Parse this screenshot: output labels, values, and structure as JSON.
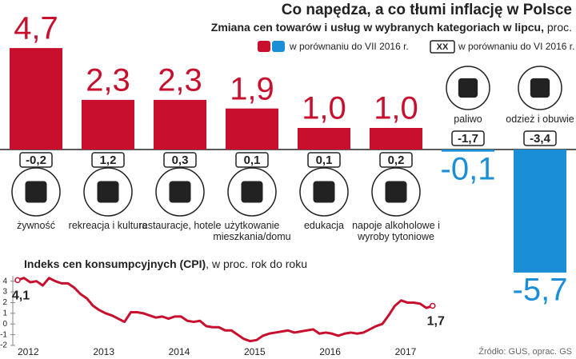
{
  "chart_data": [
    {
      "type": "bar",
      "title": "Co napędza, a co tłumi inflację w Polsce",
      "subtitle": "Zmiana cen towarów i usług w wybranych kategoriach w lipcu,",
      "unit": "proc.",
      "categories": [
        "żywność",
        "rekreacja i kultura",
        "restauracje, hotele",
        "użytkowanie mieszkania/domu",
        "edukacja",
        "napoje alkoholowe i wyroby tytoniowe",
        "paliwo",
        "odzież i obuwie"
      ],
      "series": [
        {
          "name": "w porównaniu do VII 2016 r.",
          "color": "#c8102e",
          "negative_color": "#1a8fd8",
          "values": [
            4.7,
            2.3,
            2.3,
            1.9,
            1.0,
            1.0,
            -0.1,
            -5.7
          ],
          "value_labels": [
            "4,7",
            "2,3",
            "2,3",
            "1,9",
            "1,0",
            "1,0",
            "-0,1",
            "-5,7"
          ]
        },
        {
          "name": "w porównaniu do VI 2016 r.",
          "legend_marker": "XX",
          "color": "#222222",
          "values": [
            -0.2,
            1.2,
            0.3,
            0.1,
            0.1,
            0.2,
            -1.7,
            -3.4
          ],
          "value_labels": [
            "-0,2",
            "1,2",
            "0,3",
            "0,1",
            "0,1",
            "0,2",
            "-1,7",
            "-3,4"
          ]
        }
      ]
    },
    {
      "type": "line",
      "title": "Indeks cen konsumpcyjnych (CPI)",
      "subtitle": ", w proc. rok do roku",
      "categories": [
        "2012",
        null,
        null,
        null,
        null,
        null,
        null,
        null,
        null,
        null,
        null,
        null,
        "2013",
        null,
        null,
        null,
        null,
        null,
        null,
        null,
        null,
        null,
        null,
        null,
        "2014",
        null,
        null,
        null,
        null,
        null,
        null,
        null,
        null,
        null,
        null,
        null,
        "2015",
        null,
        null,
        null,
        null,
        null,
        null,
        null,
        null,
        null,
        null,
        null,
        "2016",
        null,
        null,
        null,
        null,
        null,
        null,
        null,
        null,
        null,
        null,
        null,
        "2017",
        null,
        null,
        null,
        null,
        null,
        null
      ],
      "series": [
        {
          "color": "#c8102e",
          "values": [
            4.1,
            4.3,
            3.9,
            4.0,
            3.6,
            4.3,
            4.0,
            3.8,
            3.8,
            3.4,
            2.8,
            2.4,
            1.7,
            1.3,
            1.0,
            0.8,
            0.5,
            0.2,
            1.1,
            1.1,
            1.0,
            0.8,
            0.6,
            0.7,
            0.5,
            0.7,
            0.7,
            0.3,
            0.2,
            0.3,
            -0.2,
            -0.3,
            -0.3,
            -0.6,
            -0.6,
            -1.0,
            -1.4,
            -1.6,
            -1.5,
            -1.1,
            -0.9,
            -0.8,
            -0.7,
            -0.6,
            -0.8,
            -0.7,
            -0.6,
            -0.5,
            -0.9,
            -0.8,
            -0.9,
            -1.1,
            -0.9,
            -0.8,
            -0.9,
            -0.8,
            -0.5,
            -0.2,
            0.0,
            0.8,
            1.7,
            2.2,
            2.0,
            2.0,
            1.9,
            1.5,
            1.7
          ],
          "value_labels": [
            "4,1",
            null,
            null,
            null,
            null,
            null,
            null,
            null,
            null,
            null,
            null,
            null,
            null,
            null,
            null,
            null,
            null,
            null,
            null,
            null,
            null,
            null,
            null,
            null,
            null,
            null,
            null,
            null,
            null,
            null,
            null,
            null,
            null,
            null,
            null,
            null,
            null,
            null,
            null,
            null,
            null,
            null,
            null,
            null,
            null,
            null,
            null,
            null,
            null,
            null,
            null,
            null,
            null,
            null,
            null,
            null,
            null,
            null,
            null,
            null,
            null,
            null,
            null,
            null,
            null,
            null,
            "1,7"
          ]
        }
      ],
      "ylim": [
        -2,
        4.5
      ],
      "yticks": [
        -2,
        -1,
        0,
        1,
        2,
        3,
        4
      ]
    },
    {
      "type": "note",
      "source": "Źródło: GUS, oprac. GS"
    }
  ]
}
